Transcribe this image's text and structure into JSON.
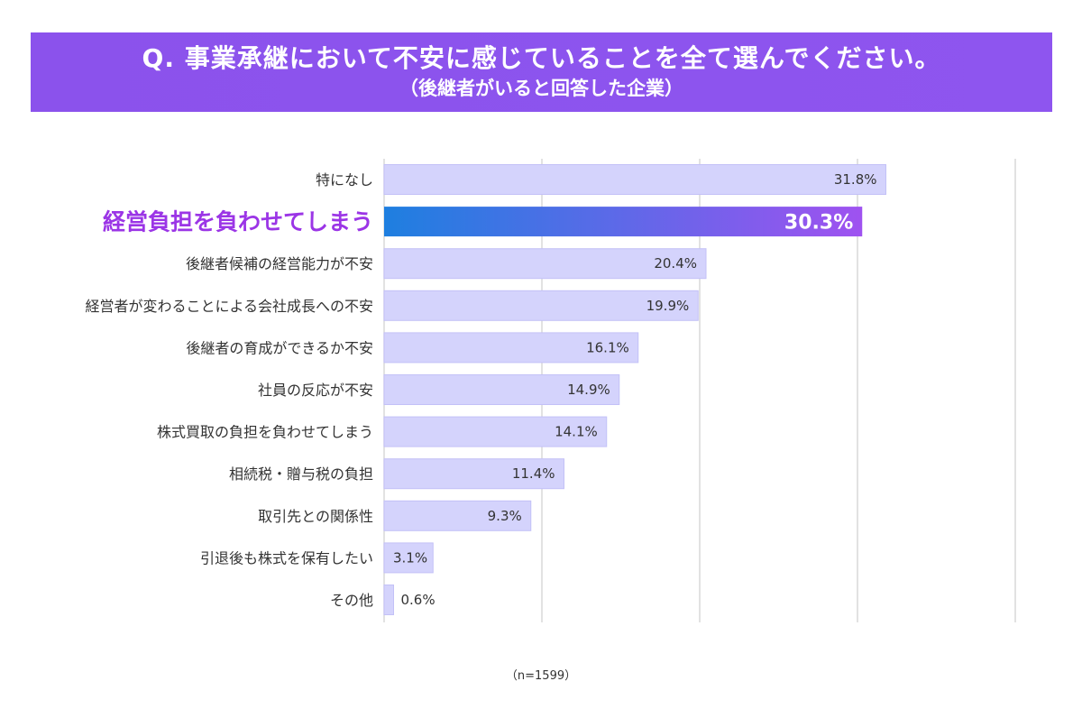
{
  "header": {
    "question": "Q. 事業承継において不安に感じていることを全て選んでください。",
    "subtitle": "（後継者がいると回答した企業）"
  },
  "note": "（n=1599）",
  "colors": {
    "banner": "#8b52ec",
    "bar": "#d4d3fc",
    "bar_border": "#c3c1f7",
    "highlight_start": "#1e7fe0",
    "highlight_end": "#9f52f0",
    "highlight_label": "#9b35e6",
    "grid": "#d9d9d9",
    "text": "#333333"
  },
  "chart_data": {
    "type": "bar",
    "orientation": "horizontal",
    "unit": "%",
    "xlim": [
      0,
      40
    ],
    "grid": true,
    "highlight_index": 1,
    "categories": [
      "特になし",
      "経営負担を負わせてしまう",
      "後継者候補の経営能力が不安",
      "経営者が変わることによる会社成長への不安",
      "後継者の育成ができるか不安",
      "社員の反応が不安",
      "株式買取の負担を負わせてしまう",
      "相続税・贈与税の負担",
      "取引先との関係性",
      "引退後も株式を保有したい",
      "その他"
    ],
    "values": [
      31.8,
      30.3,
      20.4,
      19.9,
      16.1,
      14.9,
      14.1,
      11.4,
      9.3,
      3.1,
      0.6
    ],
    "value_labels": [
      "31.8%",
      "30.3%",
      "20.4%",
      "19.9%",
      "16.1%",
      "14.9%",
      "14.1%",
      "11.4%",
      "9.3%",
      "3.1%",
      "0.6%"
    ]
  }
}
